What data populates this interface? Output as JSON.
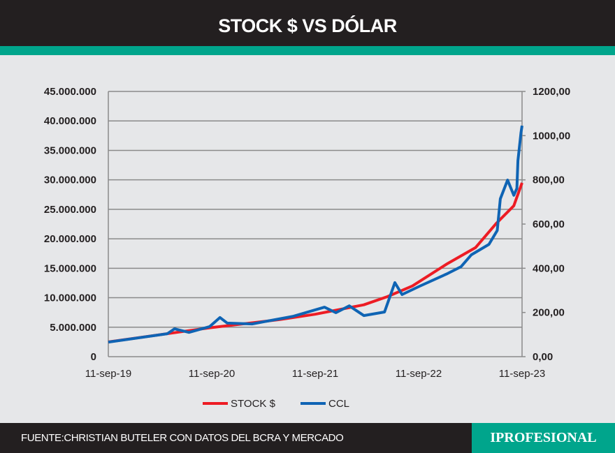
{
  "header": {
    "title": "STOCK $ VS DÓLAR"
  },
  "footer": {
    "source": "FUENTE:CHRISTIAN BUTELER CON DATOS DEL BCRA Y MERCADO",
    "logo": "IPROFESIONAL"
  },
  "colors": {
    "stock": "#ed1c24",
    "ccl": "#0f64b4",
    "accent": "#00a58c",
    "dark": "#231f20"
  },
  "chart_data": {
    "type": "line",
    "title": "STOCK $ VS DÓLAR",
    "x_unit": "years since 11-sep-19",
    "x_ticks": [
      {
        "x": 0,
        "label": "11-sep-19"
      },
      {
        "x": 1,
        "label": "11-sep-20"
      },
      {
        "x": 2,
        "label": "11-sep-21"
      },
      {
        "x": 3,
        "label": "11-sep-22"
      },
      {
        "x": 4,
        "label": "11-sep-23"
      }
    ],
    "y_left": {
      "ylim": [
        0,
        45000000
      ],
      "ticks": [
        "0",
        "5.000.000",
        "10.000.000",
        "15.000.000",
        "20.000.000",
        "25.000.000",
        "30.000.000",
        "35.000.000",
        "40.000.000",
        "45.000.000"
      ]
    },
    "y_right": {
      "ylim": [
        0,
        1200
      ],
      "ticks": [
        "0,00",
        "200,00",
        "400,00",
        "600,00",
        "800,00",
        "1000,00",
        "1200,00"
      ]
    },
    "grid": true,
    "legend_position": "bottom",
    "series": [
      {
        "name": "STOCK $",
        "axis": "left",
        "x": [
          0,
          0.98,
          1.66,
          2.0,
          2.47,
          2.7,
          2.94,
          3.28,
          3.55,
          3.75,
          3.92,
          4.0
        ],
        "y": [
          2500000,
          4900000,
          6300000,
          7200000,
          8800000,
          10200000,
          12000000,
          15800000,
          18500000,
          22600000,
          25600000,
          29500000
        ]
      },
      {
        "name": "CCL",
        "axis": "right",
        "x": [
          0,
          0.57,
          0.64,
          0.78,
          0.98,
          1.08,
          1.15,
          1.39,
          1.79,
          2.09,
          2.2,
          2.33,
          2.47,
          2.67,
          2.77,
          2.84,
          3.01,
          3.28,
          3.41,
          3.51,
          3.68,
          3.76,
          3.79,
          3.86,
          3.92,
          3.95,
          3.96,
          3.99,
          4.0
        ],
        "y": [
          66,
          104,
          126,
          110,
          136,
          177,
          152,
          148,
          183,
          224,
          199,
          230,
          186,
          202,
          335,
          281,
          319,
          376,
          407,
          461,
          508,
          571,
          714,
          799,
          730,
          761,
          887,
          1014,
          1045
        ]
      }
    ]
  }
}
